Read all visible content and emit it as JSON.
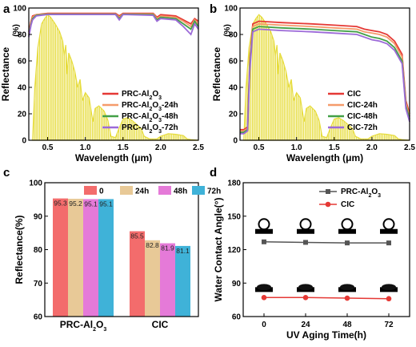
{
  "colors": {
    "prc": "#e53935",
    "prc24": "#f59b6b",
    "prc48": "#43a047",
    "prc72": "#9c6ad8",
    "solar": "#e6dc3c",
    "bar0": "#f36c6c",
    "bar24": "#e8c997",
    "bar48": "#e57ad8",
    "bar72": "#3fb2d8",
    "line_prc": "#555555",
    "line_cic": "#e53935"
  },
  "chart_data": [
    {
      "panel": "a",
      "type": "line",
      "xlabel": "Wavelength",
      "xunit": "μm",
      "ylabel": "Reflectance",
      "yunit": "(%)",
      "xlim": [
        0.25,
        2.5
      ],
      "ylim": [
        0,
        100
      ],
      "xticks": [
        "0.5",
        "1.0",
        "1.5",
        "2.0",
        "2.5"
      ],
      "yticks": [
        "0",
        "20",
        "40",
        "60",
        "80",
        "100"
      ],
      "legend_position": "bottom-right",
      "series": [
        {
          "name": "PRC-Al2O3",
          "legend_main": "PRC-Al",
          "legend_sub": "2",
          "legend_rest": "O",
          "legend_sub2": "3",
          "legend_tail": "",
          "color_key": "prc",
          "x": [
            0.25,
            0.28,
            0.3,
            0.35,
            0.5,
            1.0,
            1.4,
            1.45,
            1.5,
            1.9,
            1.95,
            2.0,
            2.2,
            2.3,
            2.4,
            2.45,
            2.5
          ],
          "y": [
            82,
            90,
            94,
            95,
            96,
            96,
            96,
            94,
            96,
            96,
            93,
            95,
            94,
            91,
            88,
            92,
            90
          ]
        },
        {
          "name": "PRC-Al2O3-24h",
          "legend_main": "PRC-Al",
          "legend_sub": "2",
          "legend_rest": "O",
          "legend_sub2": "3",
          "legend_tail": "-24h",
          "color_key": "prc24",
          "x": [
            0.25,
            0.28,
            0.3,
            0.35,
            0.5,
            1.0,
            1.4,
            1.45,
            1.5,
            1.9,
            1.95,
            2.0,
            2.2,
            2.3,
            2.4,
            2.45,
            2.5
          ],
          "y": [
            80,
            89,
            93,
            95,
            95.5,
            95.5,
            95.5,
            93,
            95.5,
            95.5,
            92,
            94,
            93,
            90,
            86,
            91,
            88
          ]
        },
        {
          "name": "PRC-Al2O3-48h",
          "legend_main": "PRC-Al",
          "legend_sub": "2",
          "legend_rest": "O",
          "legend_sub2": "3",
          "legend_tail": "-48h",
          "color_key": "prc48",
          "x": [
            0.25,
            0.28,
            0.3,
            0.35,
            0.5,
            1.0,
            1.4,
            1.45,
            1.5,
            1.9,
            1.95,
            2.0,
            2.2,
            2.3,
            2.4,
            2.45,
            2.5
          ],
          "y": [
            79,
            88,
            92,
            94.5,
            95.3,
            95.3,
            95.3,
            92,
            95.3,
            95,
            91,
            93,
            92,
            88,
            84,
            90,
            86
          ]
        },
        {
          "name": "PRC-Al2O3-72h",
          "legend_main": "PRC-Al",
          "legend_sub": "2",
          "legend_rest": "O",
          "legend_sub2": "3",
          "legend_tail": "-72h",
          "color_key": "prc72",
          "x": [
            0.25,
            0.28,
            0.3,
            0.35,
            0.5,
            1.0,
            1.4,
            1.45,
            1.5,
            1.9,
            1.95,
            2.0,
            2.2,
            2.3,
            2.4,
            2.45,
            2.5
          ],
          "y": [
            78,
            87,
            91,
            94,
            95.1,
            95.1,
            95.1,
            91,
            95.1,
            94.5,
            90,
            92,
            91,
            86,
            80,
            88,
            84
          ]
        }
      ]
    },
    {
      "panel": "b",
      "type": "line",
      "xlabel": "Wavelength",
      "xunit": "μm",
      "ylabel": "Reflectance",
      "yunit": "(%)",
      "xlim": [
        0.25,
        2.5
      ],
      "ylim": [
        0,
        100
      ],
      "xticks": [
        "0.5",
        "1.0",
        "1.5",
        "2.0",
        "2.5"
      ],
      "yticks": [
        "0",
        "20",
        "40",
        "60",
        "80",
        "100"
      ],
      "legend_position": "bottom-right",
      "series": [
        {
          "name": "CIC",
          "legend_main": "CIC",
          "legend_sub": "",
          "legend_rest": "",
          "legend_sub2": "",
          "legend_tail": "",
          "color_key": "prc",
          "x": [
            0.25,
            0.3,
            0.35,
            0.38,
            0.42,
            0.5,
            0.8,
            1.2,
            1.5,
            1.8,
            1.9,
            2.0,
            2.1,
            2.2,
            2.3,
            2.4,
            2.45,
            2.5
          ],
          "y": [
            8,
            8,
            10,
            60,
            88,
            90,
            89,
            88,
            87,
            86,
            84,
            83,
            82,
            80,
            75,
            65,
            30,
            20
          ]
        },
        {
          "name": "CIC-24h",
          "legend_main": "CIC",
          "legend_sub": "",
          "legend_rest": "",
          "legend_sub2": "",
          "legend_tail": "-24h",
          "color_key": "prc24",
          "x": [
            0.25,
            0.3,
            0.35,
            0.38,
            0.42,
            0.5,
            0.8,
            1.2,
            1.5,
            1.8,
            1.9,
            2.0,
            2.1,
            2.2,
            2.3,
            2.4,
            2.45,
            2.5
          ],
          "y": [
            7,
            7,
            9,
            58,
            86,
            88,
            87,
            86,
            85,
            84,
            82,
            81,
            80,
            78,
            73,
            63,
            28,
            18
          ]
        },
        {
          "name": "CIC-48h",
          "legend_main": "CIC",
          "legend_sub": "",
          "legend_rest": "",
          "legend_sub2": "",
          "legend_tail": "-48h",
          "color_key": "prc48",
          "x": [
            0.25,
            0.3,
            0.35,
            0.38,
            0.42,
            0.5,
            0.8,
            1.2,
            1.5,
            1.8,
            1.9,
            2.0,
            2.1,
            2.2,
            2.3,
            2.4,
            2.45,
            2.5
          ],
          "y": [
            6,
            6,
            8,
            55,
            84,
            86,
            85,
            84,
            83,
            82,
            80,
            78,
            77,
            75,
            70,
            60,
            26,
            16
          ]
        },
        {
          "name": "CIC-72h",
          "legend_main": "CIC",
          "legend_sub": "",
          "legend_rest": "",
          "legend_sub2": "",
          "legend_tail": "-72h",
          "color_key": "prc72",
          "x": [
            0.25,
            0.3,
            0.35,
            0.38,
            0.42,
            0.5,
            0.8,
            1.2,
            1.5,
            1.8,
            1.9,
            2.0,
            2.1,
            2.2,
            2.3,
            2.4,
            2.45,
            2.5
          ],
          "y": [
            5,
            5,
            7,
            52,
            82,
            84,
            83,
            82,
            81,
            80,
            78,
            76,
            75,
            73,
            68,
            58,
            24,
            14
          ]
        }
      ]
    },
    {
      "panel": "c",
      "type": "bar",
      "ylabel": "Reflectance(%)",
      "ylim": [
        60,
        100
      ],
      "yticks": [
        "60",
        "70",
        "80",
        "90",
        "100"
      ],
      "legend_position": "top",
      "categories": [
        "PRC-Al2O3",
        "CIC"
      ],
      "category_labels": [
        {
          "main": "PRC-Al",
          "sub": "2",
          "rest": "O",
          "sub2": "3"
        },
        {
          "main": "CIC",
          "sub": "",
          "rest": "",
          "sub2": ""
        }
      ],
      "series": [
        {
          "name": "0",
          "color_key": "bar0",
          "values": [
            95.3,
            85.5
          ],
          "labels": [
            "95.3",
            "85.5"
          ]
        },
        {
          "name": "24h",
          "color_key": "bar24",
          "values": [
            95.2,
            82.8
          ],
          "labels": [
            "95.2",
            "82.8"
          ]
        },
        {
          "name": "48h",
          "color_key": "bar48",
          "values": [
            95.1,
            81.9
          ],
          "labels": [
            "95.1",
            "81.9"
          ]
        },
        {
          "name": "72h",
          "color_key": "bar72",
          "values": [
            95.1,
            81.1
          ],
          "labels": [
            "95.1",
            "81.1"
          ]
        }
      ]
    },
    {
      "panel": "d",
      "type": "line",
      "xlabel": "UV Aging Time(h)",
      "ylabel": "Water Contact Angle(°)",
      "xlim": [
        -12,
        84
      ],
      "ylim": [
        60,
        180
      ],
      "x": [
        0,
        24,
        48,
        72
      ],
      "xticks": [
        "0",
        "24",
        "48",
        "72"
      ],
      "yticks": [
        "60",
        "90",
        "120",
        "150",
        "180"
      ],
      "legend_position": "top-right",
      "series": [
        {
          "name": "PRC-Al2O3",
          "legend_main": "PRC-Al",
          "legend_sub": "2",
          "legend_rest": "O",
          "legend_sub2": "3",
          "marker": "square",
          "color_key": "line_prc",
          "values": [
            127,
            126.5,
            126,
            126
          ]
        },
        {
          "name": "CIC",
          "legend_main": "CIC",
          "legend_sub": "",
          "legend_rest": "",
          "legend_sub2": "",
          "marker": "circle",
          "color_key": "line_cic",
          "values": [
            77,
            77,
            76.5,
            76
          ]
        }
      ]
    }
  ],
  "panels": {
    "a": "a",
    "b": "b",
    "c": "c",
    "d": "d"
  }
}
